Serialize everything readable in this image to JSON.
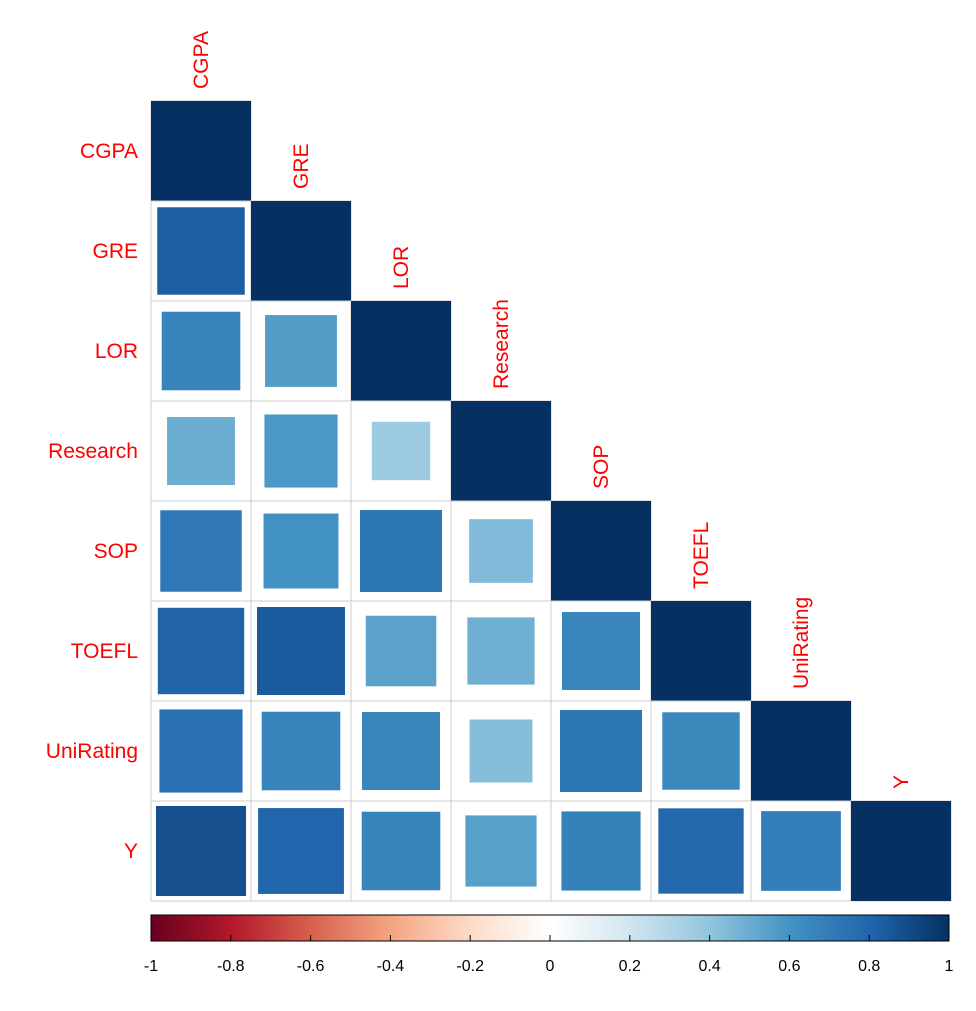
{
  "chart_data": {
    "type": "heatmap",
    "variables": [
      "CGPA",
      "GRE",
      "LOR",
      "Research",
      "SOP",
      "TOEFL",
      "UniRating",
      "Y"
    ],
    "label_color": "#ff0000",
    "matrix": [
      [
        1.0
      ],
      [
        0.83,
        1.0
      ],
      [
        0.67,
        0.56,
        1.0
      ],
      [
        0.5,
        0.58,
        0.37,
        1.0
      ],
      [
        0.72,
        0.61,
        0.73,
        0.44,
        1.0
      ],
      [
        0.81,
        0.84,
        0.54,
        0.49,
        0.66,
        1.0
      ],
      [
        0.75,
        0.67,
        0.66,
        0.43,
        0.73,
        0.65,
        1.0
      ],
      [
        0.88,
        0.8,
        0.67,
        0.55,
        0.68,
        0.79,
        0.69,
        1.0
      ]
    ],
    "colorbar": {
      "range": [
        -1,
        1
      ],
      "ticks": [
        "-1",
        "-0.8",
        "-0.6",
        "-0.4",
        "-0.2",
        "0",
        "0.2",
        "0.4",
        "0.6",
        "0.8",
        "1"
      ],
      "colors": [
        "#67001f",
        "#b2182b",
        "#d6604d",
        "#f4a582",
        "#fddbc7",
        "#ffffff",
        "#d1e5f0",
        "#92c5de",
        "#4393c3",
        "#2166ac",
        "#053061"
      ]
    }
  }
}
